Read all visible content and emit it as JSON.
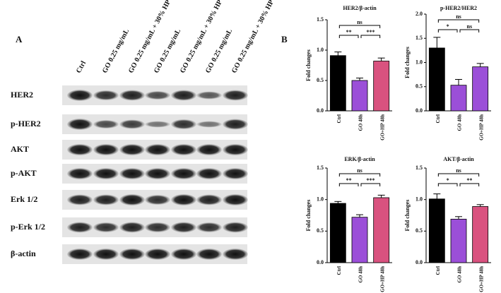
{
  "panel_a": {
    "label": "A",
    "columns": [
      "Ctrl",
      "GO 0.25 mg/mL",
      "GO 0.25 mg/mL + 30% HP",
      "GO 0.25 mg/mL",
      "GO 0.25 mg/mL + 30% HP",
      "GO 0.25 mg/mL",
      "GO 0.25 mg/mL + 30% HP"
    ],
    "rows": [
      "HER2",
      "p-HER2",
      "AKT",
      "p-AKT",
      "Erk 1/2",
      "p-Erk 1/2",
      "β-actin"
    ]
  },
  "panel_b_label": "B",
  "chart_data": [
    {
      "type": "bar",
      "title": "HER2/β-actin",
      "y_label": "Fold changes",
      "categories": [
        "Ctrl",
        "GO 48h",
        "GO+HP 48h"
      ],
      "values": [
        0.91,
        0.5,
        0.82
      ],
      "errors": [
        0.06,
        0.04,
        0.05
      ],
      "colors": [
        "#000000",
        "#9b4fd8",
        "#d9527f"
      ],
      "ylim": [
        0,
        1.5
      ],
      "yticks": [
        {
          "value": 0,
          "label": "0.0"
        },
        0.5,
        {
          "value": 1,
          "label": "1.0"
        },
        1.5
      ],
      "annotations": [
        {
          "label": "**",
          "from": 0,
          "to": 1
        },
        {
          "label": "***",
          "from": 1,
          "to": 2
        },
        {
          "label": "ns",
          "from": 0,
          "to": 2
        }
      ]
    },
    {
      "type": "bar",
      "title": "p-HER2/HER2",
      "y_label": "Fold changes",
      "categories": [
        "Ctrl",
        "GO 48h",
        "GO+HP 48h"
      ],
      "values": [
        1.3,
        0.53,
        0.91
      ],
      "errors": [
        0.22,
        0.12,
        0.07
      ],
      "colors": [
        "#000000",
        "#9b4fd8",
        "#9b4fd8"
      ],
      "ylim": [
        0,
        2
      ],
      "yticks": [
        {
          "value": 0,
          "label": "0.0"
        },
        0.5,
        {
          "value": 1,
          "label": "1.0"
        },
        1.5,
        {
          "value": 2,
          "label": "2.0"
        }
      ],
      "annotations": [
        {
          "label": "*",
          "from": 0,
          "to": 1
        },
        {
          "label": "ns",
          "from": 1,
          "to": 2
        },
        {
          "label": "ns",
          "from": 0,
          "to": 2
        }
      ]
    },
    {
      "type": "bar",
      "title": "ERK/β-actin",
      "y_label": "Fold changes",
      "categories": [
        "Ctrl",
        "GO 48h",
        "GO+HP 48h"
      ],
      "values": [
        0.94,
        0.72,
        1.03
      ],
      "errors": [
        0.03,
        0.04,
        0.04
      ],
      "colors": [
        "#000000",
        "#9b4fd8",
        "#d9527f"
      ],
      "ylim": [
        0,
        1.5
      ],
      "yticks": [
        {
          "value": 0,
          "label": "0.0"
        },
        0.5,
        {
          "value": 1,
          "label": "1.0"
        },
        1.5
      ],
      "annotations": [
        {
          "label": "**",
          "from": 0,
          "to": 1
        },
        {
          "label": "***",
          "from": 1,
          "to": 2
        },
        {
          "label": "ns",
          "from": 0,
          "to": 2
        }
      ]
    },
    {
      "type": "bar",
      "title": "AKT/β-actin",
      "y_label": "Fold changes",
      "categories": [
        "Ctrl",
        "GO 48h",
        "GO+HP 48h"
      ],
      "values": [
        1.01,
        0.69,
        0.89
      ],
      "errors": [
        0.08,
        0.04,
        0.03
      ],
      "colors": [
        "#000000",
        "#9b4fd8",
        "#d9527f"
      ],
      "ylim": [
        0,
        1.5
      ],
      "yticks": [
        {
          "value": 0,
          "label": "0.0"
        },
        0.5,
        {
          "value": 1,
          "label": "1.0"
        },
        1.5
      ],
      "annotations": [
        {
          "label": "*",
          "from": 0,
          "to": 1
        },
        {
          "label": "**",
          "from": 1,
          "to": 2
        },
        {
          "label": "ns",
          "from": 0,
          "to": 2
        }
      ]
    }
  ]
}
